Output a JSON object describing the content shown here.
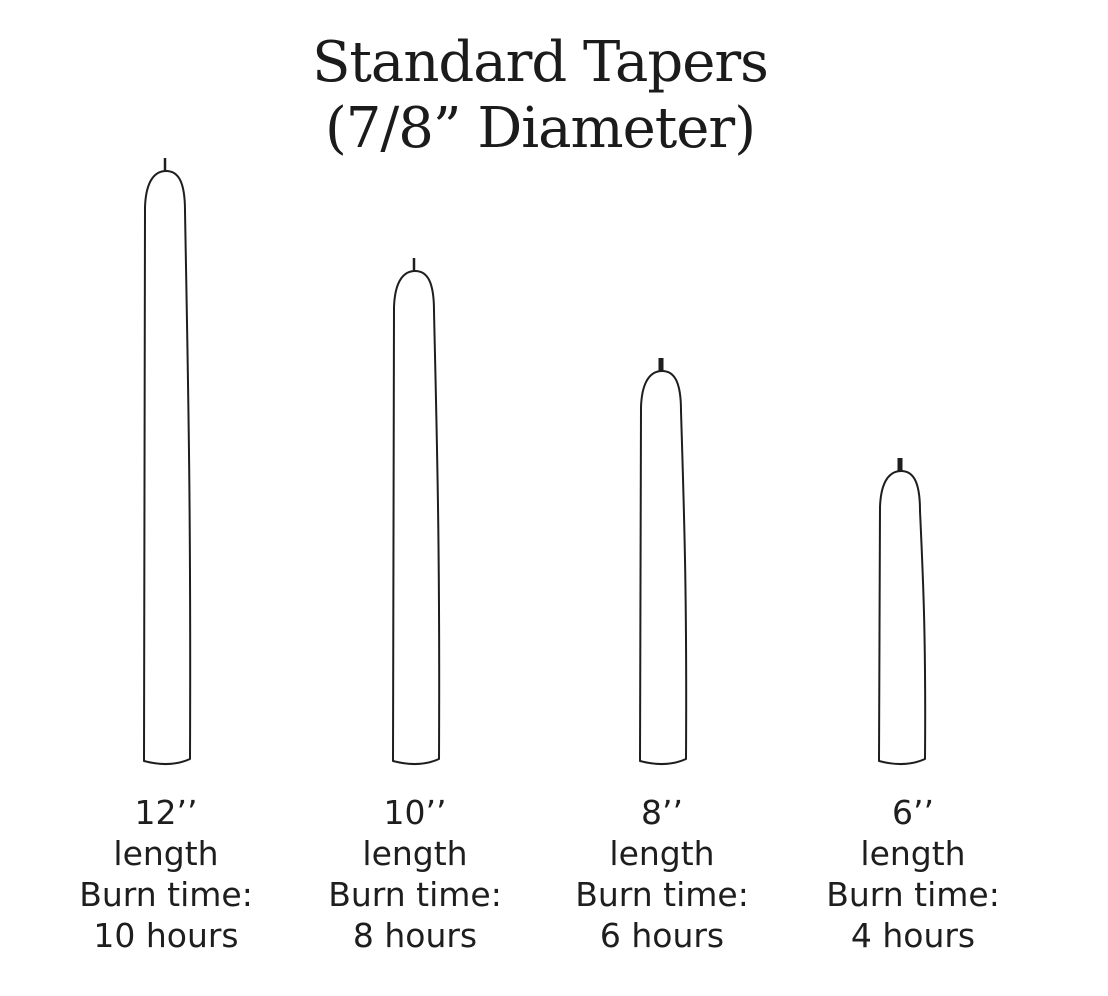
{
  "title": {
    "line1": "Standard Tapers",
    "line2": "(7/8” Diameter)"
  },
  "colors": {
    "outline": "#1e1e1e",
    "text": "#1e1e1e",
    "background": "#ffffff"
  },
  "candles": [
    {
      "size": "12’’",
      "length_label": "length",
      "burn_label": "Burn time:",
      "burn_value": "10 hours",
      "length_in": 12,
      "burn_hours": 10
    },
    {
      "size": "10’’",
      "length_label": "length",
      "burn_label": "Burn time:",
      "burn_value": "8 hours",
      "length_in": 10,
      "burn_hours": 8
    },
    {
      "size": "8’’",
      "length_label": "length",
      "burn_label": "Burn time:",
      "burn_value": "6 hours",
      "length_in": 8,
      "burn_hours": 6
    },
    {
      "size": "6’’",
      "length_label": "length",
      "burn_label": "Burn time:",
      "burn_value": "4 hours",
      "length_in": 6,
      "burn_hours": 4
    }
  ]
}
